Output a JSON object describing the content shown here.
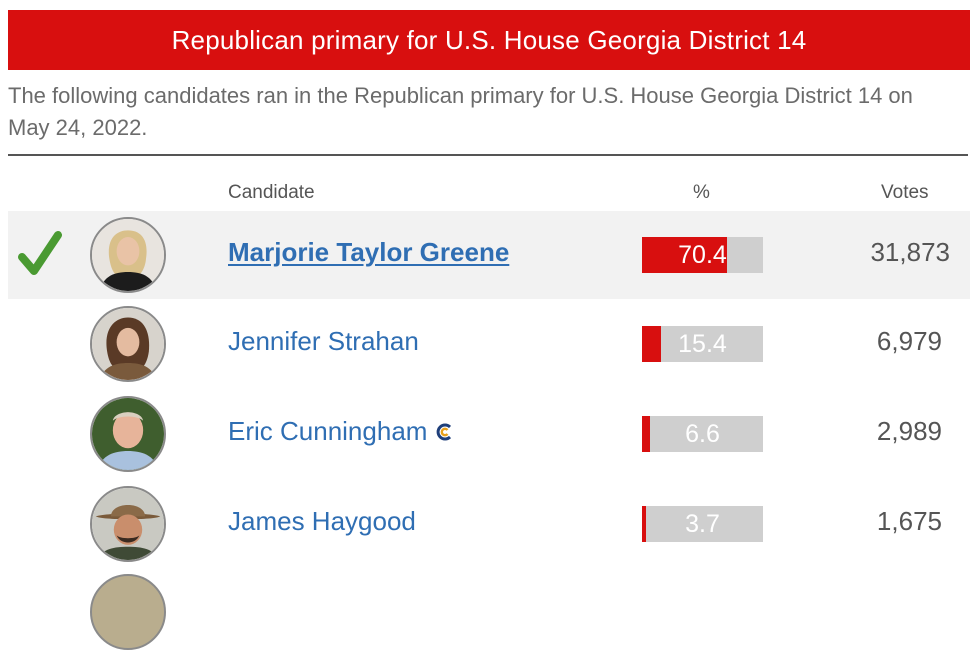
{
  "title": "Republican primary for U.S. House Georgia District 14",
  "intro": "The following candidates ran in the Republican primary for U.S. House Georgia District 14 on May 24, 2022.",
  "headers": {
    "candidate": "Candidate",
    "percent": "%",
    "votes": "Votes"
  },
  "colors": {
    "accent": "#d80f0f",
    "link": "#2f6eb3",
    "winner_check": "#4a9a32",
    "bar_bg": "#cfcfcf"
  },
  "candidates": [
    {
      "name": "Marjorie Taylor Greene",
      "percent": "70.4",
      "percent_value": 70.4,
      "votes": "31,873",
      "winner": true,
      "incumbent": false
    },
    {
      "name": "Jennifer Strahan",
      "percent": "15.4",
      "percent_value": 15.4,
      "votes": "6,979",
      "winner": false,
      "incumbent": false
    },
    {
      "name": "Eric Cunningham",
      "percent": "6.6",
      "percent_value": 6.6,
      "votes": "2,989",
      "winner": false,
      "incumbent": false,
      "icon": "ballotpedia-c-icon"
    },
    {
      "name": "James Haygood",
      "percent": "3.7",
      "percent_value": 3.7,
      "votes": "1,675",
      "winner": false,
      "incumbent": false
    }
  ]
}
